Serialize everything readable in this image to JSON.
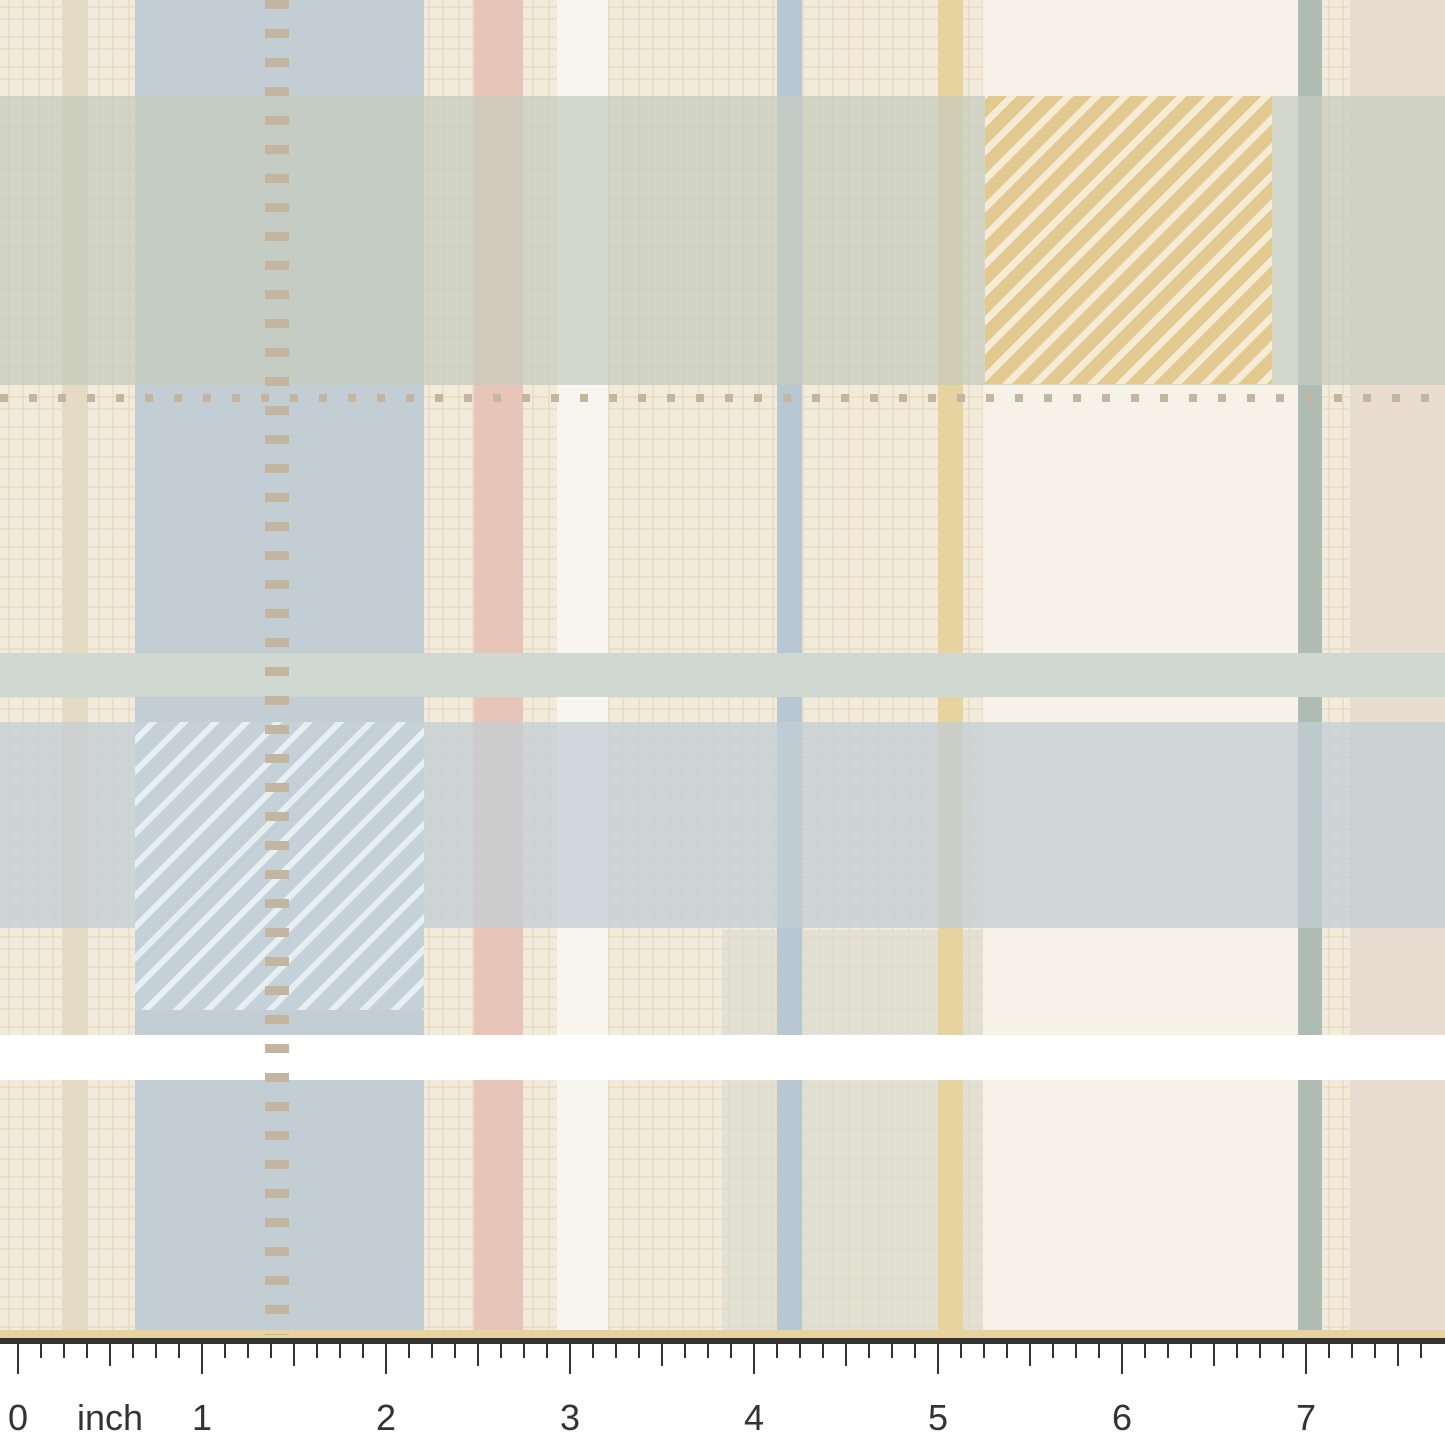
{
  "ruler": {
    "unit": "inch",
    "labels": [
      "0",
      "1",
      "2",
      "3",
      "4",
      "5",
      "6",
      "7"
    ]
  }
}
